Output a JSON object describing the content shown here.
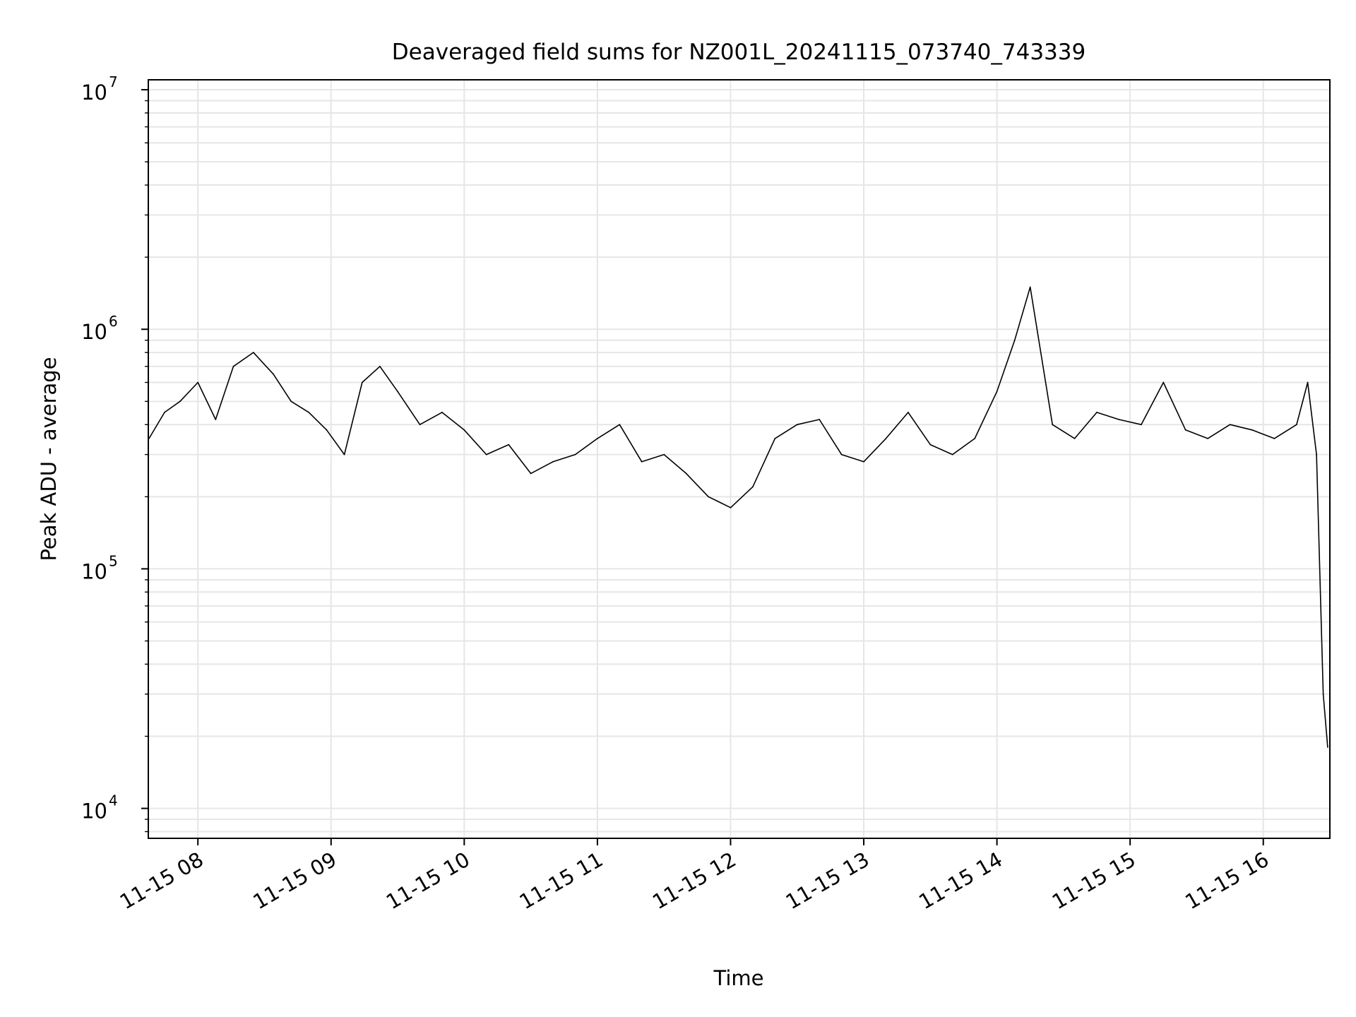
{
  "chart_data": {
    "type": "line",
    "title": "Deaveraged field sums for NZ001L_20241115_073740_743339",
    "xlabel": "Time",
    "ylabel": "Peak ADU - average",
    "yscale": "log",
    "ylim": [
      7500,
      11000000
    ],
    "xlim": [
      "2024-11-15 07:37:40",
      "2024-11-15 16:30:00"
    ],
    "grid": true,
    "line_color": "#000000",
    "x_tick_labels": [
      "11-15 08",
      "11-15 09",
      "11-15 10",
      "11-15 11",
      "11-15 12",
      "11-15 13",
      "11-15 14",
      "11-15 15",
      "11-15 16"
    ],
    "y_tick_labels": [
      {
        "base": "10",
        "exp": "4",
        "value": 10000
      },
      {
        "base": "10",
        "exp": "5",
        "value": 100000
      },
      {
        "base": "10",
        "exp": "6",
        "value": 1000000
      },
      {
        "base": "10",
        "exp": "7",
        "value": 10000000
      }
    ],
    "series": [
      {
        "x": [
          "2024-11-15 07:38",
          "2024-11-15 07:45",
          "2024-11-15 07:52",
          "2024-11-15 08:00",
          "2024-11-15 08:08",
          "2024-11-15 08:16",
          "2024-11-15 08:25",
          "2024-11-15 08:34",
          "2024-11-15 08:42",
          "2024-11-15 08:50",
          "2024-11-15 08:58",
          "2024-11-15 09:06",
          "2024-11-15 09:14",
          "2024-11-15 09:22",
          "2024-11-15 09:30",
          "2024-11-15 09:40",
          "2024-11-15 09:50",
          "2024-11-15 10:00",
          "2024-11-15 10:10",
          "2024-11-15 10:20",
          "2024-11-15 10:30",
          "2024-11-15 10:40",
          "2024-11-15 10:50",
          "2024-11-15 11:00",
          "2024-11-15 11:10",
          "2024-11-15 11:20",
          "2024-11-15 11:30",
          "2024-11-15 11:40",
          "2024-11-15 11:50",
          "2024-11-15 12:00",
          "2024-11-15 12:10",
          "2024-11-15 12:20",
          "2024-11-15 12:30",
          "2024-11-15 12:40",
          "2024-11-15 12:50",
          "2024-11-15 13:00",
          "2024-11-15 13:10",
          "2024-11-15 13:20",
          "2024-11-15 13:30",
          "2024-11-15 13:40",
          "2024-11-15 13:50",
          "2024-11-15 14:00",
          "2024-11-15 14:08",
          "2024-11-15 14:15",
          "2024-11-15 14:25",
          "2024-11-15 14:35",
          "2024-11-15 14:45",
          "2024-11-15 14:55",
          "2024-11-15 15:05",
          "2024-11-15 15:15",
          "2024-11-15 15:25",
          "2024-11-15 15:35",
          "2024-11-15 15:45",
          "2024-11-15 15:55",
          "2024-11-15 16:05",
          "2024-11-15 16:15",
          "2024-11-15 16:20",
          "2024-11-15 16:24",
          "2024-11-15 16:27",
          "2024-11-15 16:29"
        ],
        "y": [
          350000,
          450000,
          500000,
          600000,
          420000,
          700000,
          800000,
          650000,
          500000,
          450000,
          380000,
          300000,
          600000,
          700000,
          550000,
          400000,
          450000,
          380000,
          300000,
          330000,
          250000,
          280000,
          300000,
          350000,
          400000,
          280000,
          300000,
          250000,
          200000,
          180000,
          220000,
          350000,
          400000,
          420000,
          300000,
          280000,
          350000,
          450000,
          330000,
          300000,
          350000,
          550000,
          900000,
          1500000,
          400000,
          350000,
          450000,
          420000,
          400000,
          600000,
          380000,
          350000,
          400000,
          380000,
          350000,
          400000,
          600000,
          300000,
          30000,
          18000
        ]
      }
    ]
  }
}
